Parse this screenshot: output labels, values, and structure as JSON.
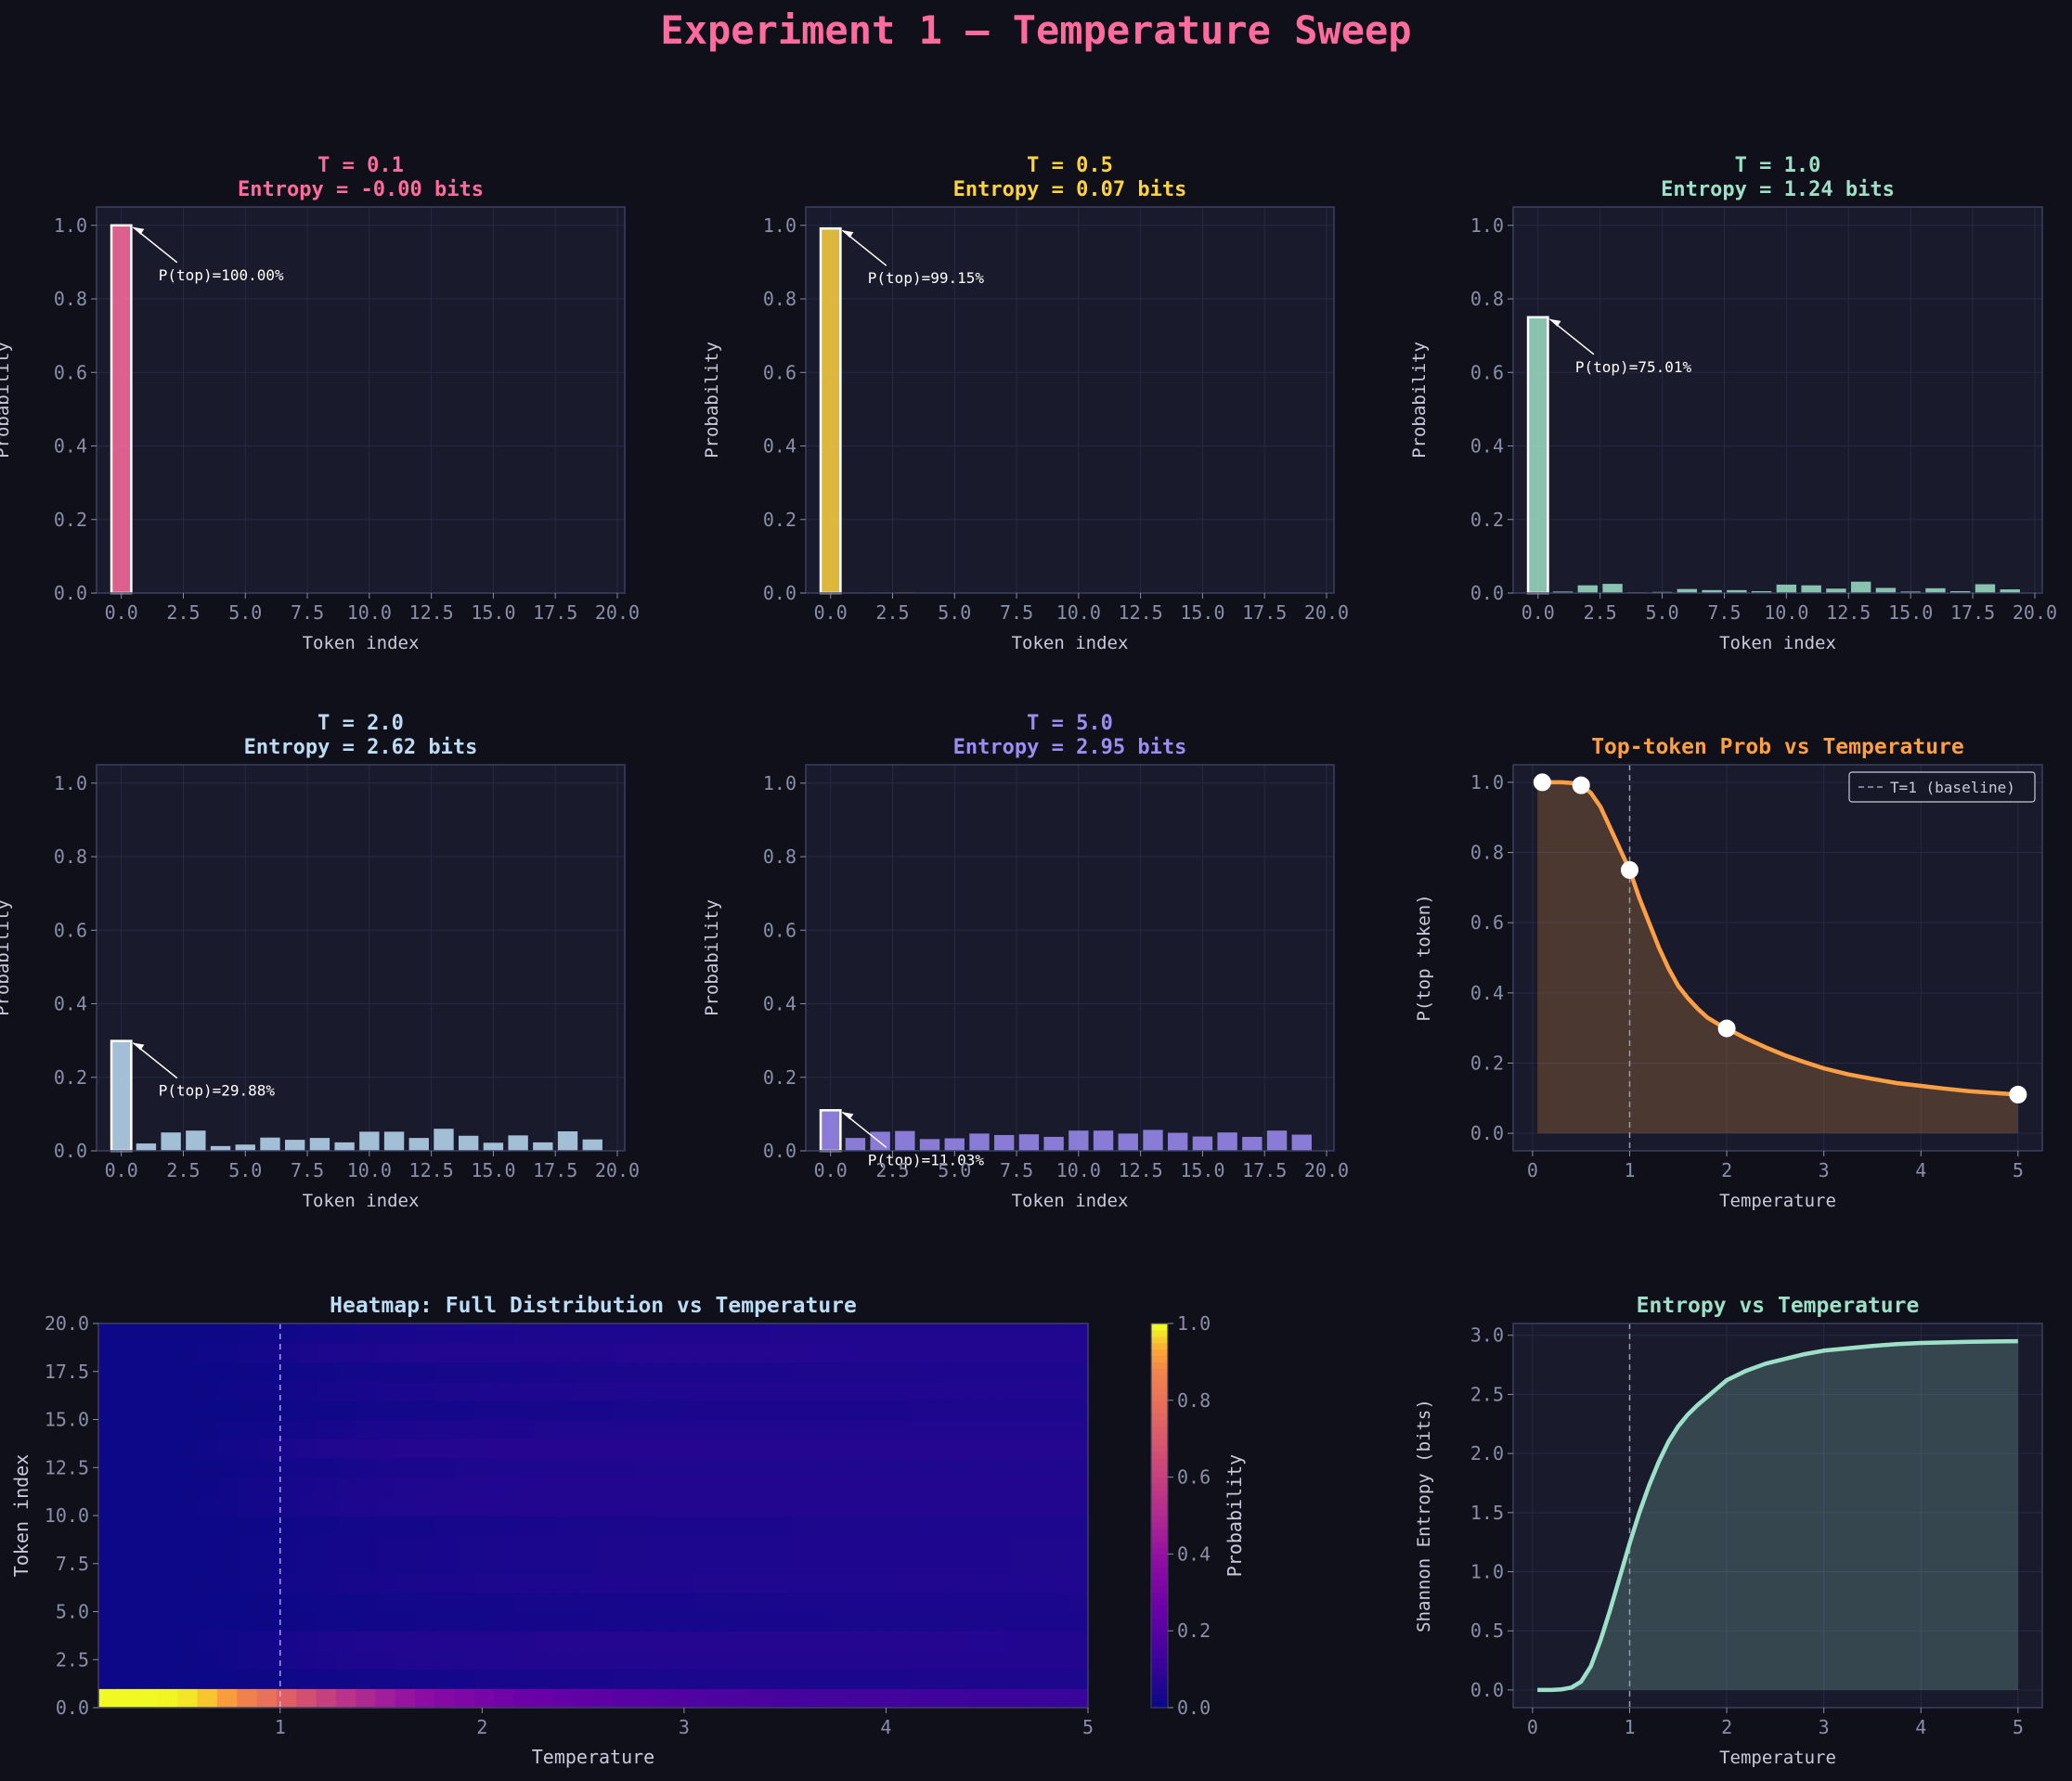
{
  "suptitle": "Experiment 1 — Temperature Sweep",
  "colors": {
    "background": "#0f1019",
    "axes_bg": "#191b2c",
    "pink": "#ff6b9d",
    "yellow": "#ffd23f",
    "mint": "#9de0c8",
    "light_blue": "#bcdcf5",
    "lavender": "#9d8cf5",
    "orange": "#ff9f43"
  },
  "chart_data": [
    {
      "type": "bar",
      "title": "T = 0.1",
      "subtitle": "Entropy = -0.00 bits",
      "xlabel": "Token index",
      "ylabel": "Probability",
      "xlim": [
        -1,
        20.3
      ],
      "ylim": [
        0,
        1.05
      ],
      "xticks": [
        "0.0",
        "2.5",
        "5.0",
        "7.5",
        "10.0",
        "12.5",
        "15.0",
        "17.5",
        "20.0"
      ],
      "yticks": [
        "0.0",
        "0.2",
        "0.4",
        "0.6",
        "0.8",
        "1.0"
      ],
      "color": "#ff6b9d",
      "x": [
        0,
        1,
        2,
        3,
        4,
        5,
        6,
        7,
        8,
        9,
        10,
        11,
        12,
        13,
        14,
        15,
        16,
        17,
        18,
        19
      ],
      "values": [
        1.0,
        0,
        0,
        0,
        0,
        0,
        0,
        0,
        0,
        0,
        0,
        0,
        0,
        0,
        0,
        0,
        0,
        0,
        0,
        0
      ],
      "annotation": "P(top)=100.00%"
    },
    {
      "type": "bar",
      "title": "T = 0.5",
      "subtitle": "Entropy = 0.07 bits",
      "xlabel": "Token index",
      "ylabel": "Probability",
      "xlim": [
        -1,
        20.3
      ],
      "ylim": [
        0,
        1.05
      ],
      "xticks": [
        "0.0",
        "2.5",
        "5.0",
        "7.5",
        "10.0",
        "12.5",
        "15.0",
        "17.5",
        "20.0"
      ],
      "yticks": [
        "0.0",
        "0.2",
        "0.4",
        "0.6",
        "0.8",
        "1.0"
      ],
      "color": "#ffd23f",
      "x": [
        0,
        1,
        2,
        3,
        4,
        5,
        6,
        7,
        8,
        9,
        10,
        11,
        12,
        13,
        14,
        15,
        16,
        17,
        18,
        19
      ],
      "values": [
        0.9915,
        0.0,
        0.0015,
        0.0017,
        0.0,
        0.0,
        0.0003,
        0.0002,
        0.0002,
        0.0001,
        0.0007,
        0.0006,
        0.0003,
        0.001,
        0.0004,
        0.0001,
        0.0003,
        0.0001,
        0.0007,
        0.0002
      ],
      "annotation": "P(top)=99.15%"
    },
    {
      "type": "bar",
      "title": "T = 1.0",
      "subtitle": "Entropy = 1.24 bits",
      "xlabel": "Token index",
      "ylabel": "Probability",
      "xlim": [
        -1,
        20.3
      ],
      "ylim": [
        0,
        1.05
      ],
      "xticks": [
        "0.0",
        "2.5",
        "5.0",
        "7.5",
        "10.0",
        "12.5",
        "15.0",
        "17.5",
        "20.0"
      ],
      "yticks": [
        "0.0",
        "0.2",
        "0.4",
        "0.6",
        "0.8",
        "1.0"
      ],
      "color": "#9de0c8",
      "x": [
        0,
        1,
        2,
        3,
        4,
        5,
        6,
        7,
        8,
        9,
        10,
        11,
        12,
        13,
        14,
        15,
        16,
        17,
        18,
        19
      ],
      "values": [
        0.7501,
        0.004,
        0.021,
        0.025,
        0.002,
        0.003,
        0.011,
        0.008,
        0.008,
        0.005,
        0.023,
        0.021,
        0.012,
        0.031,
        0.014,
        0.004,
        0.013,
        0.005,
        0.024,
        0.01
      ],
      "annotation": "P(top)=75.01%"
    },
    {
      "type": "bar",
      "title": "T = 2.0",
      "subtitle": "Entropy = 2.62 bits",
      "xlabel": "Token index",
      "ylabel": "Probability",
      "xlim": [
        -1,
        20.3
      ],
      "ylim": [
        0,
        1.05
      ],
      "xticks": [
        "0.0",
        "2.5",
        "5.0",
        "7.5",
        "10.0",
        "12.5",
        "15.0",
        "17.5",
        "20.0"
      ],
      "yticks": [
        "0.0",
        "0.2",
        "0.4",
        "0.6",
        "0.8",
        "1.0"
      ],
      "color": "#bcdcf5",
      "x": [
        0,
        1,
        2,
        3,
        4,
        5,
        6,
        7,
        8,
        9,
        10,
        11,
        12,
        13,
        14,
        15,
        16,
        17,
        18,
        19
      ],
      "values": [
        0.2988,
        0.02,
        0.05,
        0.055,
        0.013,
        0.017,
        0.036,
        0.03,
        0.035,
        0.023,
        0.052,
        0.052,
        0.035,
        0.06,
        0.041,
        0.022,
        0.042,
        0.023,
        0.053,
        0.031
      ],
      "annotation": "P(top)=29.88%"
    },
    {
      "type": "bar",
      "title": "T = 5.0",
      "subtitle": "Entropy = 2.95 bits",
      "xlabel": "Token index",
      "ylabel": "Probability",
      "xlim": [
        -1,
        20.3
      ],
      "ylim": [
        0,
        1.05
      ],
      "xticks": [
        "0.0",
        "2.5",
        "5.0",
        "7.5",
        "10.0",
        "12.5",
        "15.0",
        "17.5",
        "20.0"
      ],
      "yticks": [
        "0.0",
        "0.2",
        "0.4",
        "0.6",
        "0.8",
        "1.0"
      ],
      "color": "#9d8cf5",
      "x": [
        0,
        1,
        2,
        3,
        4,
        5,
        6,
        7,
        8,
        9,
        10,
        11,
        12,
        13,
        14,
        15,
        16,
        17,
        18,
        19
      ],
      "values": [
        0.1103,
        0.035,
        0.052,
        0.054,
        0.032,
        0.034,
        0.047,
        0.043,
        0.045,
        0.038,
        0.055,
        0.055,
        0.047,
        0.057,
        0.049,
        0.039,
        0.05,
        0.038,
        0.055,
        0.044
      ],
      "annotation": "P(top)=11.03%"
    },
    {
      "type": "line",
      "title": "Top-token Prob vs Temperature",
      "xlabel": "Temperature",
      "ylabel": "P(top token)",
      "xlim": [
        -0.2,
        5.25
      ],
      "ylim": [
        -0.05,
        1.05
      ],
      "xticks": [
        "0",
        "1",
        "2",
        "3",
        "4",
        "5"
      ],
      "yticks": [
        "0.0",
        "0.2",
        "0.4",
        "0.6",
        "0.8",
        "1.0"
      ],
      "color": "#ff9f43",
      "fill": true,
      "legend": "T=1 (baseline)",
      "legend_position": "top-right",
      "reference_line_x": 1,
      "x": [
        0.05,
        0.1,
        0.2,
        0.3,
        0.4,
        0.5,
        0.6,
        0.7,
        0.8,
        0.9,
        1.0,
        1.1,
        1.2,
        1.3,
        1.4,
        1.5,
        1.6,
        1.7,
        1.8,
        1.9,
        2.0,
        2.2,
        2.4,
        2.6,
        2.8,
        3.0,
        3.25,
        3.5,
        3.75,
        4.0,
        4.25,
        4.5,
        4.75,
        5.0
      ],
      "values": [
        1.0,
        1.0,
        1.0,
        1.0,
        0.998,
        0.9915,
        0.97,
        0.93,
        0.87,
        0.81,
        0.7501,
        0.67,
        0.6,
        0.53,
        0.47,
        0.42,
        0.385,
        0.355,
        0.33,
        0.313,
        0.2988,
        0.27,
        0.245,
        0.222,
        0.203,
        0.185,
        0.168,
        0.155,
        0.143,
        0.135,
        0.127,
        0.12,
        0.115,
        0.1103
      ],
      "markers": {
        "x": [
          0.1,
          0.5,
          1.0,
          2.0,
          5.0
        ],
        "y": [
          1.0,
          0.9915,
          0.7501,
          0.2988,
          0.1103
        ]
      }
    },
    {
      "type": "heatmap",
      "title": "Heatmap: Full Distribution vs Temperature",
      "xlabel": "Temperature",
      "ylabel": "Token index",
      "xlim": [
        0.1,
        5.0
      ],
      "ylim": [
        0,
        20
      ],
      "xticks": [
        "1",
        "2",
        "3",
        "4",
        "5"
      ],
      "yticks": [
        "0.0",
        "2.5",
        "5.0",
        "7.5",
        "10.0",
        "12.5",
        "15.0",
        "17.5",
        "20.0"
      ],
      "colorbar_label": "Probability",
      "colorbar_ticks": [
        "0.0",
        "0.2",
        "0.4",
        "0.6",
        "0.8",
        "1.0"
      ],
      "colormap": "plasma",
      "reference_line_x": 1,
      "columns": 50,
      "rows": 20
    },
    {
      "type": "line",
      "title": "Entropy vs Temperature",
      "xlabel": "Temperature",
      "ylabel": "Shannon Entropy (bits)",
      "xlim": [
        -0.2,
        5.25
      ],
      "ylim": [
        -0.15,
        3.1
      ],
      "xticks": [
        "0",
        "1",
        "2",
        "3",
        "4",
        "5"
      ],
      "yticks": [
        "0.0",
        "0.5",
        "1.0",
        "1.5",
        "2.0",
        "2.5",
        "3.0"
      ],
      "color": "#9de0c8",
      "fill": true,
      "reference_line_x": 1,
      "x": [
        0.05,
        0.1,
        0.2,
        0.3,
        0.4,
        0.5,
        0.6,
        0.7,
        0.8,
        0.9,
        1.0,
        1.1,
        1.2,
        1.3,
        1.4,
        1.5,
        1.6,
        1.7,
        1.8,
        1.9,
        2.0,
        2.2,
        2.4,
        2.6,
        2.8,
        3.0,
        3.25,
        3.5,
        3.75,
        4.0,
        4.25,
        4.5,
        4.75,
        5.0
      ],
      "values": [
        0.0,
        0.0,
        0.0,
        0.005,
        0.02,
        0.07,
        0.2,
        0.42,
        0.68,
        0.96,
        1.24,
        1.5,
        1.73,
        1.93,
        2.1,
        2.23,
        2.33,
        2.41,
        2.48,
        2.55,
        2.62,
        2.7,
        2.76,
        2.8,
        2.84,
        2.87,
        2.89,
        2.91,
        2.925,
        2.935,
        2.94,
        2.945,
        2.948,
        2.95
      ]
    }
  ]
}
